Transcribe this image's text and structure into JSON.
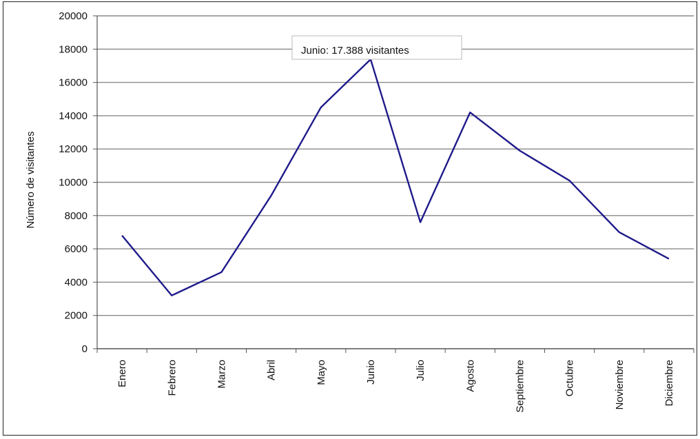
{
  "chart_data": {
    "type": "line",
    "title": "",
    "xlabel": "",
    "ylabel": "Número de visitantes",
    "categories": [
      "Enero",
      "Febrero",
      "Marzo",
      "Abril",
      "Mayo",
      "Junio",
      "Julio",
      "Agosto",
      "Septiembre",
      "Octubre",
      "Noviembre",
      "Diciembre"
    ],
    "series": [
      {
        "values": [
          6800,
          3200,
          4600,
          9200,
          14500,
          17388,
          7600,
          14200,
          11900,
          10100,
          7000,
          5400
        ]
      }
    ],
    "ylim": [
      0,
      20000
    ],
    "yticks": [
      "0",
      "2000",
      "4000",
      "6000",
      "8000",
      "10000",
      "12000",
      "14000",
      "16000",
      "18000",
      "20000"
    ],
    "grid": true,
    "legend": "none",
    "annotation": {
      "text": "Junio: 17.388 visitantes",
      "category": "Junio",
      "value": 17388
    },
    "colors": {
      "line": "#1f1a8a",
      "grid": "#8a8a8a",
      "axis": "#555555",
      "tooltip_border": "#b8b8b8"
    }
  }
}
